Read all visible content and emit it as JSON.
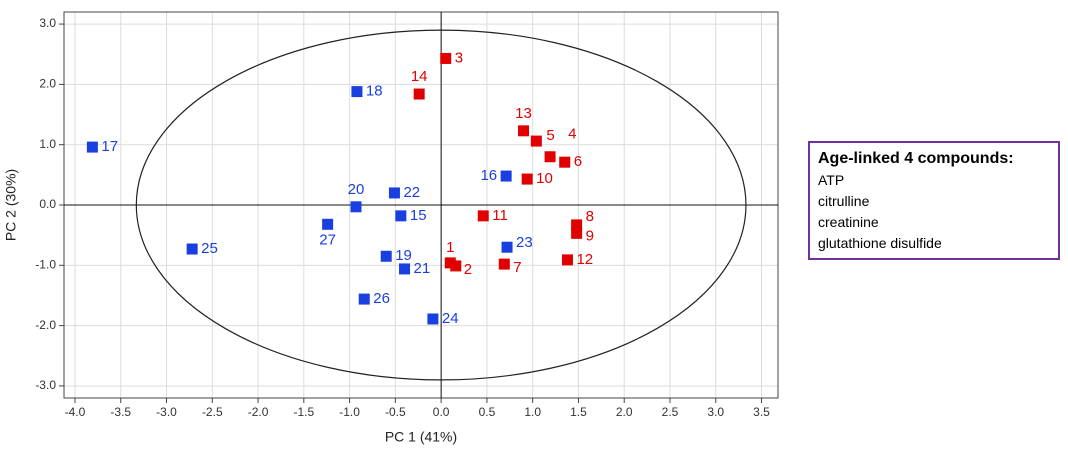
{
  "chart_data": {
    "type": "scatter",
    "xlabel": "PC 1 (41%)",
    "ylabel": "PC 2 (30%)",
    "xlim": [
      -4.12,
      3.68
    ],
    "ylim": [
      -3.2,
      3.2
    ],
    "xticks": [
      {
        "value": -4,
        "label": "-4.0"
      },
      {
        "value": -3.5,
        "label": "-3.5"
      },
      {
        "value": -3,
        "label": "-3.0"
      },
      {
        "value": -2.5,
        "label": "-2.5"
      },
      {
        "value": -2,
        "label": "-2.0"
      },
      {
        "value": -1.5,
        "label": "-1.5"
      },
      {
        "value": -1,
        "label": "-1.0"
      },
      {
        "value": -0.5,
        "label": "-0.5"
      },
      {
        "value": 0,
        "label": "0.0"
      },
      {
        "value": 0.5,
        "label": "0.5"
      },
      {
        "value": 1,
        "label": "1.0"
      },
      {
        "value": 1.5,
        "label": "1.5"
      },
      {
        "value": 2,
        "label": "2.0"
      },
      {
        "value": 2.5,
        "label": "2.5"
      },
      {
        "value": 3,
        "label": "3.0"
      },
      {
        "value": 3.5,
        "label": "3.5"
      }
    ],
    "yticks": [
      {
        "value": 3,
        "label": "3.0"
      },
      {
        "value": 2,
        "label": "2.0"
      },
      {
        "value": 1,
        "label": "1.0"
      },
      {
        "value": 0,
        "label": "0.0"
      },
      {
        "value": -1,
        "label": "-1.0"
      },
      {
        "value": -2,
        "label": "-2.0"
      },
      {
        "value": -3,
        "label": "-3.0"
      }
    ],
    "grid": true,
    "ellipse_radii": [
      3.33,
      2.9
    ],
    "series": [
      {
        "color": "#e00000",
        "labels": [
          "1",
          "2",
          "3",
          "14",
          "13",
          "5",
          "4",
          "6",
          "10",
          "11",
          "8",
          "9",
          "12",
          "7"
        ],
        "x": [
          0.1,
          0.16,
          0.05,
          -0.24,
          0.9,
          1.04,
          1.19,
          1.35,
          0.94,
          0.46,
          1.48,
          1.48,
          1.38,
          0.69
        ],
        "values": [
          -0.96,
          -1.01,
          2.43,
          1.84,
          1.23,
          1.06,
          0.8,
          0.71,
          0.43,
          -0.18,
          -0.33,
          -0.47,
          -0.91,
          -0.98
        ]
      },
      {
        "color": "#1a3fe0",
        "labels": [
          "17",
          "18",
          "16",
          "20",
          "22",
          "15",
          "27",
          "25",
          "19",
          "21",
          "23",
          "26",
          "24"
        ],
        "x": [
          -3.81,
          -0.92,
          0.71,
          -0.93,
          -0.51,
          -0.44,
          -1.24,
          -2.72,
          -0.6,
          -0.4,
          0.72,
          -0.84,
          -0.09
        ],
        "values": [
          0.96,
          1.88,
          0.48,
          -0.03,
          0.2,
          -0.18,
          -0.32,
          -0.73,
          -0.85,
          -1.06,
          -0.7,
          -1.56,
          -1.89
        ]
      }
    ]
  },
  "legend_box": {
    "title": "Age-linked 4 compounds:",
    "items": [
      "ATP",
      "citrulline",
      "creatinine",
      "glutathione disulfide"
    ]
  }
}
